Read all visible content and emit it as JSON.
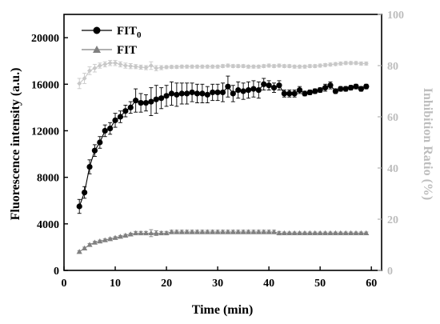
{
  "chart_data": {
    "type": "line",
    "xlabel": "Time (min)",
    "ylabel": "Fluorescence intensity (a.u.)",
    "y2label": "Inhibition Ratio (%)",
    "xlim": [
      0,
      62
    ],
    "ylim": [
      0,
      22000
    ],
    "y2lim": [
      0,
      100
    ],
    "xticks": [
      "0",
      "10",
      "20",
      "30",
      "40",
      "50",
      "60"
    ],
    "yticks": [
      "0",
      "4000",
      "8000",
      "12000",
      "16000",
      "20000"
    ],
    "y2ticks": [
      "0",
      "20",
      "40",
      "60",
      "80",
      "100"
    ],
    "grid": false,
    "legend_position": "top-left",
    "legend": [
      {
        "label": "FIT",
        "sub": "0"
      },
      {
        "label": "FIT",
        "sub": ""
      }
    ],
    "colors": {
      "fit0": "#000000",
      "fit": "#808080",
      "inhibition": "#c8c8c8",
      "right_axis": "#bdbdbd"
    },
    "series": [
      {
        "axis": "left",
        "marker": "circle",
        "x": [
          3,
          4,
          5,
          6,
          7,
          8,
          9,
          10,
          11,
          12,
          13,
          14,
          15,
          16,
          17,
          18,
          19,
          20,
          21,
          22,
          23,
          24,
          25,
          26,
          27,
          28,
          29,
          30,
          31,
          32,
          33,
          34,
          35,
          36,
          37,
          38,
          39,
          40,
          41,
          42,
          43,
          44,
          45,
          46,
          47,
          48,
          49,
          50,
          51,
          52,
          53,
          54,
          55,
          56,
          57,
          58,
          59
        ],
        "y": [
          5500,
          6700,
          8900,
          10300,
          11000,
          12000,
          12200,
          12900,
          13200,
          13700,
          14000,
          14600,
          14400,
          14400,
          14500,
          14700,
          14800,
          15000,
          15200,
          15100,
          15200,
          15200,
          15300,
          15200,
          15200,
          15100,
          15300,
          15300,
          15300,
          15800,
          15200,
          15500,
          15400,
          15500,
          15600,
          15500,
          16000,
          15900,
          15700,
          15900,
          15200,
          15200,
          15200,
          15500,
          15200,
          15300,
          15400,
          15500,
          15700,
          15900,
          15400,
          15600,
          15600,
          15700,
          15800,
          15600,
          15800
        ],
        "err": [
          600,
          500,
          600,
          500,
          500,
          500,
          500,
          600,
          500,
          500,
          500,
          1000,
          800,
          700,
          1200,
          1200,
          900,
          900,
          1000,
          1000,
          900,
          900,
          800,
          800,
          800,
          700,
          700,
          700,
          800,
          900,
          700,
          700,
          700,
          700,
          700,
          700,
          500,
          400,
          400,
          400,
          300,
          300,
          300,
          300,
          200,
          200,
          200,
          200,
          300,
          300,
          200,
          200,
          200,
          200,
          200,
          200,
          200
        ]
      },
      {
        "axis": "left",
        "marker": "triangle",
        "x": [
          3,
          4,
          5,
          6,
          7,
          8,
          9,
          10,
          11,
          12,
          13,
          14,
          15,
          16,
          17,
          18,
          19,
          20,
          21,
          22,
          23,
          24,
          25,
          26,
          27,
          28,
          29,
          30,
          31,
          32,
          33,
          34,
          35,
          36,
          37,
          38,
          39,
          40,
          41,
          42,
          43,
          44,
          45,
          46,
          47,
          48,
          49,
          50,
          51,
          52,
          53,
          54,
          55,
          56,
          57,
          58,
          59
        ],
        "y": [
          1600,
          1900,
          2200,
          2400,
          2500,
          2600,
          2700,
          2800,
          2900,
          3000,
          3100,
          3200,
          3200,
          3200,
          3200,
          3200,
          3200,
          3200,
          3300,
          3300,
          3300,
          3300,
          3300,
          3300,
          3300,
          3300,
          3300,
          3300,
          3300,
          3300,
          3300,
          3300,
          3300,
          3300,
          3300,
          3300,
          3300,
          3300,
          3300,
          3200,
          3200,
          3200,
          3200,
          3200,
          3200,
          3200,
          3200,
          3200,
          3200,
          3200,
          3200,
          3200,
          3200,
          3200,
          3200,
          3200,
          3200
        ],
        "err": [
          100,
          100,
          100,
          100,
          100,
          100,
          100,
          100,
          100,
          100,
          100,
          150,
          150,
          150,
          300,
          200,
          150,
          150,
          150,
          150,
          150,
          150,
          150,
          150,
          150,
          150,
          150,
          150,
          150,
          150,
          150,
          150,
          150,
          150,
          150,
          150,
          150,
          150,
          150,
          150,
          100,
          100,
          100,
          100,
          100,
          100,
          100,
          100,
          100,
          100,
          100,
          100,
          100,
          100,
          100,
          100,
          100
        ]
      },
      {
        "axis": "right",
        "marker": "diamond",
        "x": [
          3,
          4,
          5,
          6,
          7,
          8,
          9,
          10,
          11,
          12,
          13,
          14,
          15,
          16,
          17,
          18,
          19,
          20,
          21,
          22,
          23,
          24,
          25,
          26,
          27,
          28,
          29,
          30,
          31,
          32,
          33,
          34,
          35,
          36,
          37,
          38,
          39,
          40,
          41,
          42,
          43,
          44,
          45,
          46,
          47,
          48,
          49,
          50,
          51,
          52,
          53,
          54,
          55,
          56,
          57,
          58,
          59
        ],
        "y": [
          73,
          75,
          78,
          79,
          80,
          80.5,
          81,
          81,
          80.5,
          80,
          79.8,
          79.6,
          79.4,
          79.2,
          80,
          79,
          79.2,
          79.4,
          79.5,
          79.5,
          79.6,
          79.6,
          79.6,
          79.6,
          79.6,
          79.6,
          79.6,
          79.6,
          79.8,
          80,
          79.8,
          79.8,
          79.8,
          79.6,
          79.6,
          79.6,
          79.8,
          80,
          79.8,
          80,
          79.8,
          79.8,
          79.6,
          79.6,
          79.6,
          79.8,
          79.8,
          80,
          80.2,
          80.4,
          80.6,
          80.8,
          81,
          81,
          81,
          80.8,
          80.8
        ],
        "err": [
          2,
          2,
          1.5,
          1.5,
          1,
          1,
          1,
          1,
          1,
          1,
          1,
          0.8,
          0.8,
          0.8,
          1.5,
          1,
          0.8,
          0.6,
          0.6,
          0.6,
          0.6,
          0.6,
          0.6,
          0.6,
          0.6,
          0.6,
          0.6,
          0.6,
          0.6,
          0.6,
          0.6,
          0.6,
          0.6,
          0.6,
          0.6,
          0.6,
          0.6,
          0.6,
          0.6,
          0.6,
          0.6,
          0.6,
          0.6,
          0.6,
          0.6,
          0.6,
          0.6,
          0.6,
          0.6,
          0.6,
          0.6,
          0.6,
          0.6,
          0.6,
          0.6,
          0.6,
          0.6
        ]
      }
    ]
  }
}
